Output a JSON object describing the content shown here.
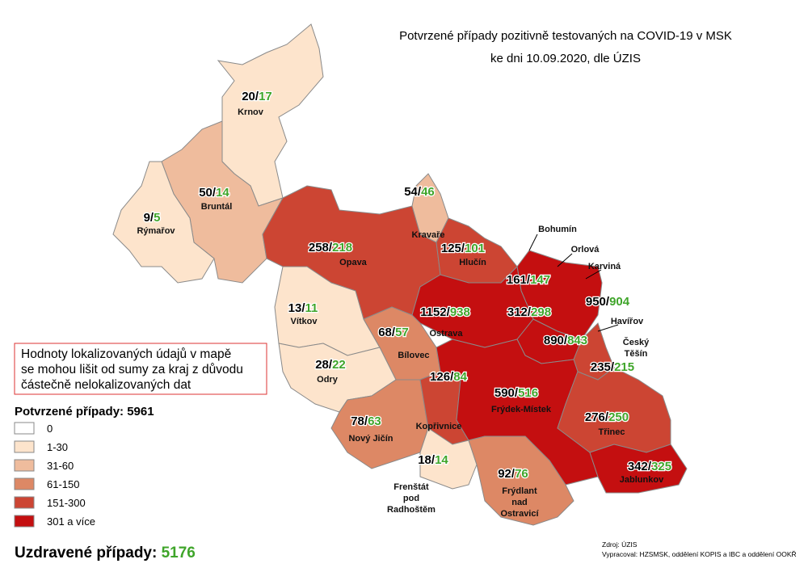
{
  "header": {
    "title_lines": [
      "Potvrzené případy pozitivně testovaných na COVID-19 v MSK",
      "ke dni 10.09.2020, dle ÚZIS"
    ]
  },
  "separator": "/",
  "districts": [
    {
      "confirmed": 20,
      "recovered": 17,
      "name_lines": [
        "Krnov"
      ]
    },
    {
      "confirmed": 50,
      "recovered": 14,
      "name_lines": [
        "Bruntál"
      ]
    },
    {
      "confirmed": 9,
      "recovered": 5,
      "name_lines": [
        "Rýmařov"
      ]
    },
    {
      "confirmed": 258,
      "recovered": 218,
      "name_lines": [
        "Opava"
      ]
    },
    {
      "confirmed": 54,
      "recovered": 46,
      "name_lines": [
        "Kravaře"
      ]
    },
    {
      "confirmed": 125,
      "recovered": 101,
      "name_lines": [
        "Hlučín"
      ]
    },
    {
      "confirmed": 161,
      "recovered": 147,
      "name_lines": [
        "Bohumín"
      ]
    },
    {
      "confirmed": 312,
      "recovered": 298,
      "name_lines": [
        "Orlová"
      ]
    },
    {
      "confirmed": 950,
      "recovered": 904,
      "name_lines": [
        "Karviná"
      ]
    },
    {
      "confirmed": 890,
      "recovered": 843,
      "name_lines": [
        "Havířov"
      ]
    },
    {
      "confirmed": 235,
      "recovered": 215,
      "name_lines": [
        "Český",
        "Těšín"
      ]
    },
    {
      "confirmed": 1152,
      "recovered": 938,
      "name_lines": [
        "Ostrava"
      ]
    },
    {
      "confirmed": 13,
      "recovered": 11,
      "name_lines": [
        "Vítkov"
      ]
    },
    {
      "confirmed": 68,
      "recovered": 57,
      "name_lines": [
        "Bílovec"
      ]
    },
    {
      "confirmed": 28,
      "recovered": 22,
      "name_lines": [
        "Odry"
      ]
    },
    {
      "confirmed": 126,
      "recovered": 84,
      "name_lines": [
        "Kopřivnice"
      ]
    },
    {
      "confirmed": 590,
      "recovered": 516,
      "name_lines": [
        "Frýdek-Místek"
      ]
    },
    {
      "confirmed": 276,
      "recovered": 250,
      "name_lines": [
        "Třinec"
      ]
    },
    {
      "confirmed": 78,
      "recovered": 63,
      "name_lines": [
        "Nový Jičín"
      ]
    },
    {
      "confirmed": 18,
      "recovered": 14,
      "name_lines": [
        "Frenštát",
        "pod",
        "Radhoštěm"
      ]
    },
    {
      "confirmed": 92,
      "recovered": 76,
      "name_lines": [
        "Frýdlant",
        "nad",
        "Ostravicí"
      ]
    },
    {
      "confirmed": 342,
      "recovered": 325,
      "name_lines": [
        "Jablunkov"
      ]
    }
  ],
  "note": {
    "lines": [
      "Hodnoty lokalizovaných údajů v mapě",
      "se mohou lišit od sumy za kraj z důvodu",
      "částečně nelokalizovaných dat"
    ]
  },
  "confirmed_total": {
    "label": "Potvrzené případy:",
    "value": 5961
  },
  "legend": [
    {
      "label": "0",
      "color": "#ffffff"
    },
    {
      "label": "1-30",
      "color": "#fde4cc"
    },
    {
      "label": "31-60",
      "color": "#efbc9d"
    },
    {
      "label": "61-150",
      "color": "#dd8865"
    },
    {
      "label": "151-300",
      "color": "#cc4533"
    },
    {
      "label": "301 a více",
      "color": "#c40f10"
    }
  ],
  "recovered_total": {
    "label": "Uzdravené případy:",
    "value": 5176
  },
  "credits": [
    "Zdroj: ÚZIS",
    "Vypracoval: HZSMSK, oddělení KOPIS a IBC a oddělení OOKŘ"
  ]
}
